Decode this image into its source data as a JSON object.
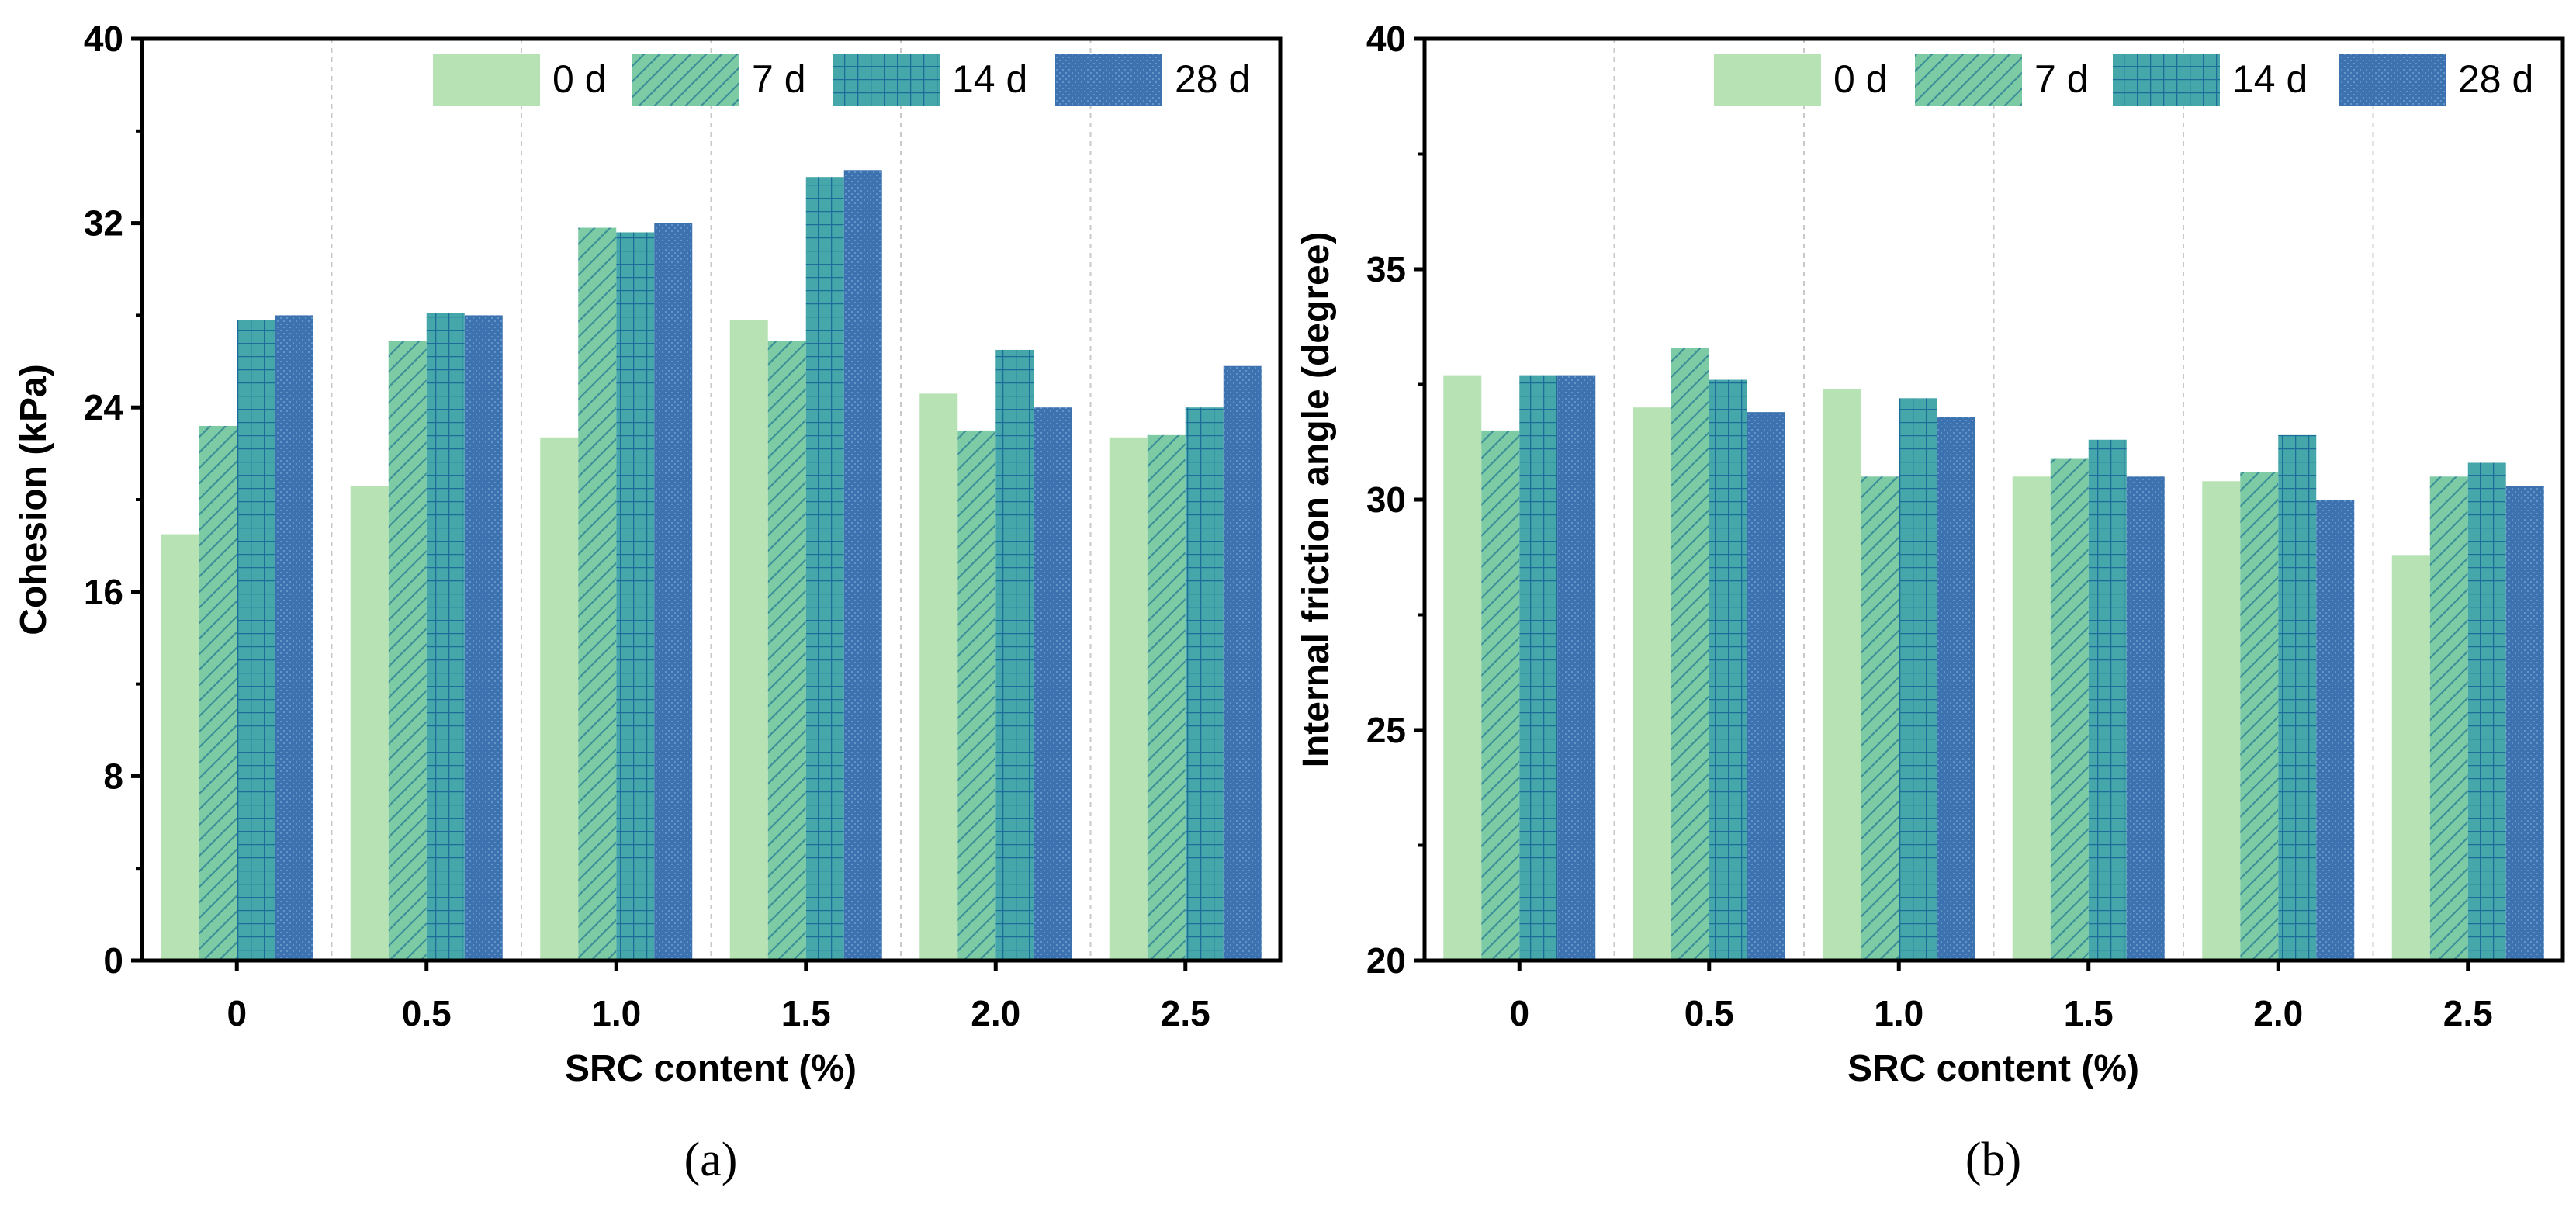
{
  "colors": {
    "0 d": "#b7e3b4",
    "7 d": "#7ccba5",
    "14 d": "#45a7a9",
    "28 d": "#3c72b0",
    "hatch_7d": "#3d8f98",
    "hatch_14d": "#1d6d9a",
    "hatch_28d": "#6f9fd3"
  },
  "chart_data": [
    {
      "type": "bar",
      "panel_label": "(a)",
      "xlabel": "SRC content (%)",
      "ylabel": "Cohesion (kPa)",
      "categories": [
        "0",
        "0.5",
        "1.0",
        "1.5",
        "2.0",
        "2.5"
      ],
      "ylim": [
        0,
        40
      ],
      "yticks": [
        "0",
        "8",
        "16",
        "24",
        "32",
        "40"
      ],
      "legend_position": "top-right",
      "grid": "vertical dashed between categories",
      "series": [
        {
          "name": "0 d",
          "values": [
            18.5,
            20.6,
            22.7,
            27.8,
            24.6,
            22.7
          ]
        },
        {
          "name": "7 d",
          "values": [
            23.2,
            26.9,
            31.8,
            26.9,
            23.0,
            22.8
          ]
        },
        {
          "name": "14 d",
          "values": [
            27.8,
            28.1,
            31.6,
            34.0,
            26.5,
            24.0
          ]
        },
        {
          "name": "28 d",
          "values": [
            28.0,
            28.0,
            32.0,
            34.3,
            24.0,
            25.8
          ]
        }
      ]
    },
    {
      "type": "bar",
      "panel_label": "(b)",
      "xlabel": "SRC content (%)",
      "ylabel": "Internal friction angle (degree)",
      "categories": [
        "0",
        "0.5",
        "1.0",
        "1.5",
        "2.0",
        "2.5"
      ],
      "ylim": [
        20,
        40
      ],
      "yticks": [
        "20",
        "25",
        "30",
        "35",
        "40"
      ],
      "legend_position": "top-right",
      "grid": "vertical dashed between categories",
      "series": [
        {
          "name": "0 d",
          "values": [
            32.7,
            32.0,
            32.4,
            30.5,
            30.4,
            28.8
          ]
        },
        {
          "name": "7 d",
          "values": [
            31.5,
            33.3,
            30.5,
            30.9,
            30.6,
            30.5
          ]
        },
        {
          "name": "14 d",
          "values": [
            32.7,
            32.6,
            32.2,
            31.3,
            31.4,
            30.8
          ]
        },
        {
          "name": "28 d",
          "values": [
            32.7,
            31.9,
            31.8,
            30.5,
            30.0,
            30.3
          ]
        }
      ]
    }
  ]
}
